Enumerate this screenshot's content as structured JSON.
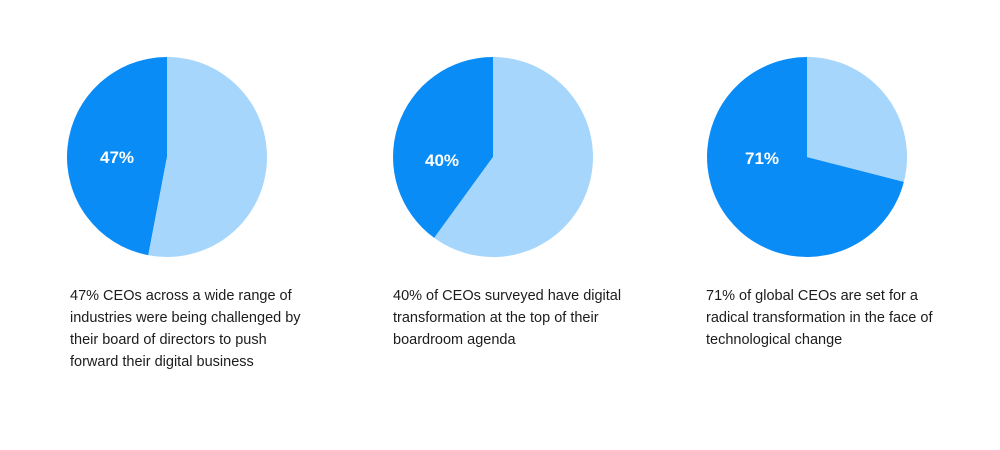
{
  "colors": {
    "primary": "#0a8cf7",
    "secondary": "#a6d6fb",
    "text": "#1c1c1c",
    "background": "#ffffff"
  },
  "chart_data": [
    {
      "type": "pie",
      "slices": [
        {
          "value": 47,
          "color": "#0a8cf7"
        },
        {
          "value": 53,
          "color": "#a6d6fb"
        }
      ],
      "label": "47%",
      "caption": "47% CEOs across a wide range of industries were being challenged by their board of directors to push forward their digital business"
    },
    {
      "type": "pie",
      "slices": [
        {
          "value": 40,
          "color": "#0a8cf7"
        },
        {
          "value": 60,
          "color": "#a6d6fb"
        }
      ],
      "label": "40%",
      "caption": "40% of CEOs surveyed have digital transformation at the top of their boardroom agenda"
    },
    {
      "type": "pie",
      "slices": [
        {
          "value": 71,
          "color": "#0a8cf7"
        },
        {
          "value": 29,
          "color": "#a6d6fb"
        }
      ],
      "label": "71%",
      "caption": "71% of global CEOs are set for a radical transformation in the face of technological change"
    }
  ]
}
